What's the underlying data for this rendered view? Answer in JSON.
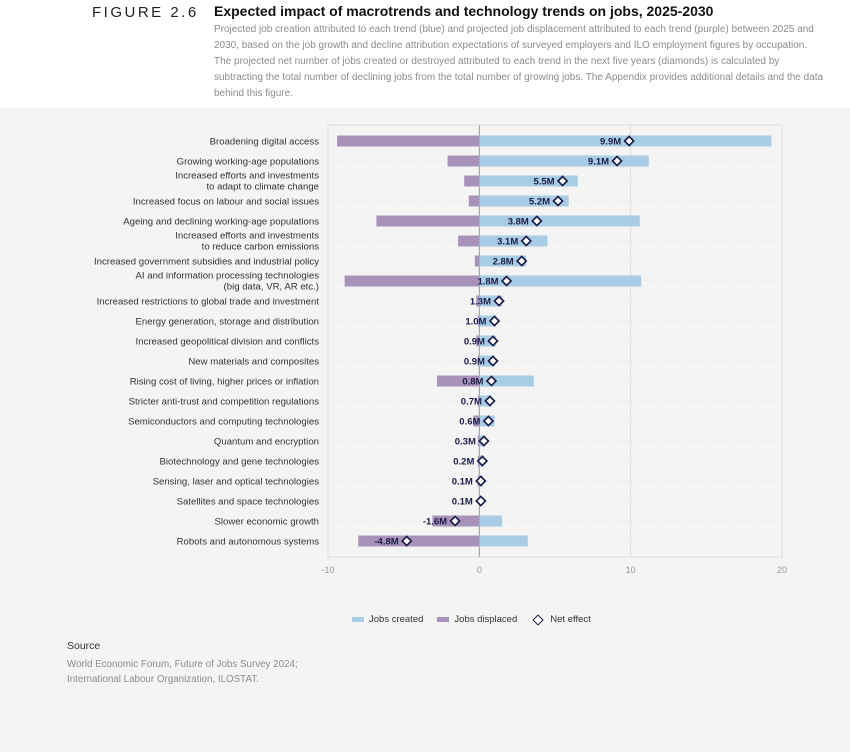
{
  "header": {
    "figure_number": "FIGURE 2.6",
    "title": "Expected impact of macrotrends and technology trends on jobs, 2025-2030",
    "description_lines": [
      "Projected job creation attributed to each trend (blue) and projected job displacement attributed to each trend (purple) between 2025 and",
      "2030, based on the job growth and decline attribution expectations of surveyed employers and ILO employment figures by occupation.",
      "The projected net number of jobs created or destroyed attributed to each trend in the next five years (diamonds) is calculated by",
      "subtracting the total number of declining jobs from the total number of growing jobs. The Appendix provides additional details and the data",
      "behind this figure."
    ]
  },
  "chart_data": {
    "type": "bar",
    "orientation": "horizontal",
    "xlim": [
      -10,
      20
    ],
    "xticks": [
      "-10",
      "0",
      "10",
      "20"
    ],
    "grid": true,
    "legend_position": "bottom",
    "colors": {
      "created": "#a8cce4",
      "displaced": "#a992ba",
      "net": "#1c1d4a"
    },
    "categories": [
      "Broadening digital access",
      "Growing working-age populations",
      "Increased efforts and investments\nto adapt to climate change",
      "Increased focus on labour and social issues",
      "Ageing and declining working-age populations",
      "Increased efforts and investments\nto reduce carbon emissions",
      "Increased government subsidies and industrial policy",
      "AI and information processing technologies\n(big data, VR, AR etc.)",
      "Increased restrictions to global trade and investment",
      "Energy generation, storage and distribution",
      "Increased geopolitical division and conflicts",
      "New materials and composites",
      "Rising cost of living, higher prices or inflation",
      "Stricter anti-trust and competition regulations",
      "Semiconductors and computing technologies",
      "Quantum and encryption",
      "Biotechnology and gene technologies",
      "Sensing, laser and optical technologies",
      "Satellites and space technologies",
      "Slower economic growth",
      "Robots and autonomous systems"
    ],
    "series": [
      {
        "name": "Jobs created",
        "values": [
          19.3,
          11.2,
          6.5,
          5.9,
          10.6,
          4.5,
          3.1,
          10.7,
          1.5,
          1.1,
          1.1,
          1.0,
          3.6,
          0.8,
          1.0,
          0.4,
          0.3,
          0.2,
          0.1,
          1.5,
          3.2
        ]
      },
      {
        "name": "Jobs displaced",
        "values": [
          -9.4,
          -2.1,
          -1.0,
          -0.7,
          -6.8,
          -1.4,
          -0.3,
          -8.9,
          -0.2,
          -0.1,
          -0.2,
          -0.1,
          -2.8,
          -0.1,
          -0.4,
          -0.1,
          -0.1,
          -0.1,
          0,
          -3.1,
          -8.0
        ]
      },
      {
        "name": "Net effect",
        "values": [
          9.9,
          9.1,
          5.5,
          5.2,
          3.8,
          3.1,
          2.8,
          1.8,
          1.3,
          1.0,
          0.9,
          0.9,
          0.8,
          0.7,
          0.6,
          0.3,
          0.2,
          0.1,
          0.1,
          -1.6,
          -4.8
        ]
      }
    ],
    "data_labels": [
      "9.9M",
      "9.1M",
      "5.5M",
      "5.2M",
      "3.8M",
      "3.1M",
      "2.8M",
      "1.8M",
      "1.3M",
      "1.0M",
      "0.9M",
      "0.9M",
      "0.8M",
      "0.7M",
      "0.6M",
      "0.3M",
      "0.2M",
      "0.1M",
      "0.1M",
      "-1.6M",
      "-4.8M"
    ]
  },
  "legend": {
    "created": "Jobs created",
    "displaced": "Jobs displaced",
    "net": "Net effect"
  },
  "source": {
    "heading": "Source",
    "lines": [
      "World Economic Forum, Future of Jobs Survey 2024;",
      "International Labour Organization, ILOSTAT."
    ]
  }
}
